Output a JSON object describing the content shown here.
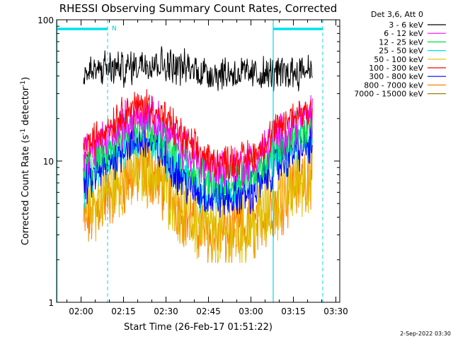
{
  "chart_data": {
    "type": "line",
    "title": "RHESSI Observing Summary Count Rates, Corrected",
    "xlabel": "Start Time (26-Feb-17 01:51:22)",
    "ylabel_main": "Corrected Count Rate (s",
    "ylabel_sup1": "-1",
    "ylabel_mid": " detector",
    "ylabel_sup2": "-1",
    "ylabel_end": ")",
    "yscale": "log",
    "xlim": [
      "01:51:22",
      "03:31:22"
    ],
    "ylim": [
      1,
      100
    ],
    "x_ticks": [
      "02:00",
      "02:15",
      "02:30",
      "02:45",
      "03:00",
      "03:15",
      "03:30"
    ],
    "y_ticks": [
      "1",
      "10",
      "100"
    ],
    "legend_header": "Det 3,6, Att 0",
    "legend_position": "right",
    "series": [
      {
        "name": "3 - 6 keV",
        "color": "#000000",
        "values": [
          [
            1.0,
            41
          ],
          [
            1.5,
            45
          ],
          [
            2.0,
            45
          ],
          [
            2.5,
            51
          ],
          [
            3.0,
            48
          ],
          [
            3.5,
            45
          ],
          [
            4.0,
            42
          ],
          [
            4.5,
            42
          ],
          [
            5.0,
            41
          ],
          [
            5.5,
            41
          ],
          [
            6.0,
            43
          ],
          [
            6.4,
            46
          ]
        ]
      },
      {
        "name": "6 - 12 keV",
        "color": "#ff00ff",
        "values": [
          [
            1.0,
            11
          ],
          [
            1.5,
            14
          ],
          [
            2.0,
            19
          ],
          [
            2.5,
            21
          ],
          [
            3.0,
            16
          ],
          [
            3.5,
            11
          ],
          [
            4.0,
            9
          ],
          [
            4.5,
            9
          ],
          [
            5.0,
            10
          ],
          [
            5.5,
            14
          ],
          [
            6.0,
            19
          ],
          [
            6.4,
            21
          ]
        ]
      },
      {
        "name": "12 - 25 keV",
        "color": "#00e040",
        "values": [
          [
            1.0,
            8.5
          ],
          [
            1.5,
            12
          ],
          [
            2.0,
            17
          ],
          [
            2.5,
            19
          ],
          [
            3.0,
            14
          ],
          [
            3.5,
            9.5
          ],
          [
            4.0,
            7.5
          ],
          [
            4.5,
            7.5
          ],
          [
            5.0,
            8.5
          ],
          [
            5.5,
            12
          ],
          [
            6.0,
            16
          ],
          [
            6.4,
            18
          ]
        ]
      },
      {
        "name": "25 - 50 keV",
        "color": "#00e0e0",
        "values": [
          [
            1.0,
            7
          ],
          [
            1.5,
            10
          ],
          [
            2.0,
            14
          ],
          [
            2.5,
            16
          ],
          [
            3.0,
            11
          ],
          [
            3.5,
            7.5
          ],
          [
            4.0,
            6
          ],
          [
            4.5,
            6
          ],
          [
            5.0,
            7
          ],
          [
            5.5,
            10
          ],
          [
            6.0,
            13
          ],
          [
            6.4,
            15
          ]
        ]
      },
      {
        "name": "50 - 100 keV",
        "color": "#e0c000",
        "values": [
          [
            1.0,
            4
          ],
          [
            1.5,
            6
          ],
          [
            2.0,
            8
          ],
          [
            2.5,
            9
          ],
          [
            3.0,
            6.5
          ],
          [
            3.5,
            4
          ],
          [
            4.0,
            3
          ],
          [
            4.5,
            3
          ],
          [
            5.0,
            3.5
          ],
          [
            5.5,
            5
          ],
          [
            6.0,
            7
          ],
          [
            6.4,
            8
          ]
        ]
      },
      {
        "name": "100 - 300 keV",
        "color": "#ff0000",
        "values": [
          [
            1.0,
            12
          ],
          [
            1.5,
            17
          ],
          [
            2.0,
            23
          ],
          [
            2.5,
            25
          ],
          [
            3.0,
            19
          ],
          [
            3.5,
            13
          ],
          [
            4.0,
            10
          ],
          [
            4.5,
            10
          ],
          [
            5.0,
            11
          ],
          [
            5.5,
            16
          ],
          [
            6.0,
            22
          ],
          [
            6.4,
            24
          ]
        ]
      },
      {
        "name": "300 - 800 keV",
        "color": "#0000ff",
        "values": [
          [
            1.0,
            6.5
          ],
          [
            1.5,
            9
          ],
          [
            2.0,
            13
          ],
          [
            2.5,
            14
          ],
          [
            3.0,
            10
          ],
          [
            3.5,
            6.5
          ],
          [
            4.0,
            5.5
          ],
          [
            4.5,
            5.5
          ],
          [
            5.0,
            6
          ],
          [
            5.5,
            9
          ],
          [
            6.0,
            12
          ],
          [
            6.4,
            13
          ]
        ]
      },
      {
        "name": "800 - 7000 keV",
        "color": "#ff8000",
        "values": [
          [
            1.0,
            3.5
          ],
          [
            1.5,
            5.5
          ],
          [
            2.0,
            7.5
          ],
          [
            2.5,
            9
          ],
          [
            3.0,
            6
          ],
          [
            3.5,
            4
          ],
          [
            4.0,
            3
          ],
          [
            4.5,
            3
          ],
          [
            5.0,
            3.5
          ],
          [
            5.5,
            5
          ],
          [
            6.0,
            7
          ],
          [
            6.4,
            9
          ]
        ]
      },
      {
        "name": "7000 - 15000 keV",
        "color": "#a08000",
        "values": []
      }
    ],
    "saa_flag_label": "N",
    "date_stamp": "2-Sep-2022 03:30"
  }
}
